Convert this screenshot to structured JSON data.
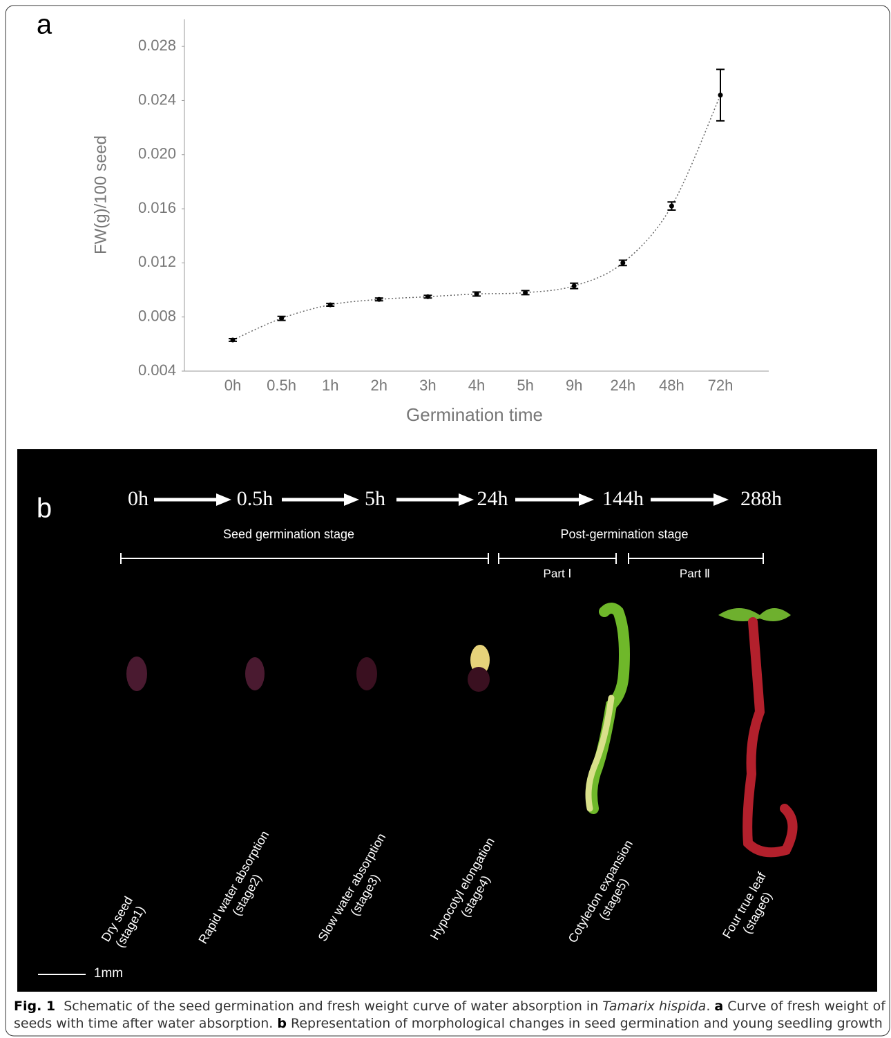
{
  "chart_data": {
    "type": "line",
    "panel": "a",
    "y_label": "FW(g)/100 seed",
    "x_label": "Germination time",
    "categories": [
      "0h",
      "0.5h",
      "1h",
      "2h",
      "3h",
      "4h",
      "5h",
      "9h",
      "24h",
      "48h",
      "72h"
    ],
    "values": [
      0.0063,
      0.0079,
      0.0089,
      0.0093,
      0.0095,
      0.0097,
      0.0098,
      0.0103,
      0.012,
      0.0162,
      0.0244
    ],
    "errors": [
      0.0001,
      0.00015,
      0.0001,
      0.0001,
      0.0001,
      0.00015,
      0.00015,
      0.0002,
      0.0002,
      0.0003,
      0.0019
    ],
    "color": "#000000",
    "ylim": [
      0.004,
      0.03
    ],
    "yticks": [
      0.004,
      0.008,
      0.012,
      0.016,
      {
        "value": 0.02,
        "label": "0.020"
      },
      0.024,
      0.028
    ],
    "grid": false
  },
  "panel_b": {
    "label": "b",
    "timeline": [
      "0h",
      "0.5h",
      "5h",
      "24h",
      "144h",
      "288h"
    ],
    "phases": [
      "Seed germination stage",
      "Post-germination stage"
    ],
    "parts": [
      "Part Ⅰ",
      "Part Ⅱ"
    ],
    "stages": [
      {
        "name": "Dry seed",
        "stage": "(stage1)"
      },
      {
        "name": "Rapid water absorption",
        "stage": "(stage2)"
      },
      {
        "name": "Slow water absorption",
        "stage": "(stage3)"
      },
      {
        "name": "Hypocotyl elongation",
        "stage": "(stage4)"
      },
      {
        "name": "Cotyledon expansion",
        "stage": "(stage5)"
      },
      {
        "name": "Four true leaf",
        "stage": "(stage6)"
      }
    ],
    "scale_bar": "1mm"
  },
  "caption": {
    "label": "Fig. 1",
    "text": "Schematic of the seed germination and fresh weight curve of water absorption in",
    "species": "Tamarix hispida",
    "end": ".",
    "a": "a",
    "a_text": "Curve of fresh weight of seeds with time after water absorption.",
    "b": "b",
    "b_text": "Representation of morphological changes in seed germination and young seedling growth"
  }
}
